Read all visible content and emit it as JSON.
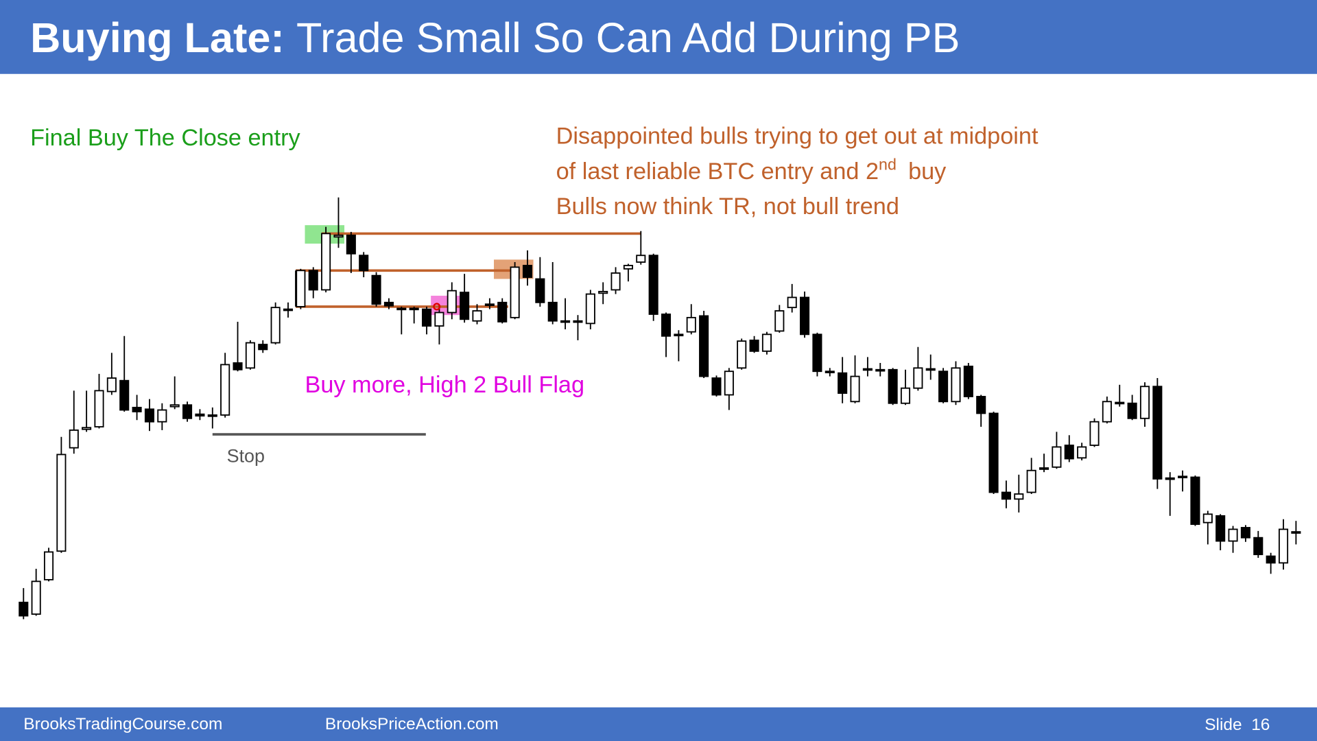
{
  "chart_data": {
    "type": "candlestick",
    "title": "Buying Late:",
    "subtitle": "Trade Small So Can Add During PB",
    "annotations": [
      "Final Buy The Close entry",
      "Disappointed bulls trying to get out at midpoint",
      "of last reliable BTC entry and 2",
      "nd",
      "buy",
      "Bulls now think TR, not bull trend",
      "Buy more, High 2 Bull Flag",
      "Stop"
    ],
    "bull_color": "#ffffff",
    "bear_color": "#000000",
    "ylim": [
      0,
      560
    ],
    "open": [
      43,
      29,
      70,
      104,
      227,
      249,
      252,
      294,
      307,
      275,
      273,
      258,
      276,
      278,
      267,
      266,
      266,
      328,
      322,
      350,
      352,
      392,
      395,
      438,
      415,
      478,
      480,
      456,
      432,
      400,
      393,
      393,
      392,
      372,
      388,
      412,
      378,
      398,
      400,
      382,
      444,
      428,
      400,
      377,
      377,
      375,
      411,
      415,
      440,
      448,
      456,
      386,
      362,
      365,
      384,
      310,
      290,
      322,
      355,
      342,
      366,
      394,
      406,
      362,
      318,
      316,
      282,
      321,
      320,
      320,
      280,
      298,
      321,
      318,
      282,
      324,
      288,
      268,
      174,
      166,
      174,
      203,
      204,
      230,
      215,
      230,
      258,
      281,
      280,
      262,
      300,
      191,
      193,
      192,
      138,
      146,
      116,
      132,
      120,
      98,
      90,
      127
    ],
    "high": [
      60,
      83,
      108,
      240,
      295,
      295,
      315,
      340,
      360,
      290,
      285,
      280,
      312,
      282,
      273,
      275,
      340,
      377,
      355,
      355,
      400,
      400,
      440,
      442,
      490,
      525,
      484,
      460,
      436,
      405,
      395,
      395,
      395,
      397,
      424,
      434,
      398,
      405,
      405,
      448,
      462,
      454,
      448,
      405,
      385,
      415,
      424,
      442,
      446,
      485,
      458,
      388,
      367,
      398,
      390,
      313,
      322,
      357,
      360,
      365,
      397,
      422,
      413,
      364,
      322,
      335,
      337,
      335,
      328,
      322,
      320,
      347,
      338,
      322,
      330,
      328,
      290,
      270,
      188,
      195,
      215,
      220,
      246,
      242,
      233,
      262,
      288,
      302,
      290,
      305,
      310,
      198,
      200,
      194,
      152,
      148,
      134,
      135,
      128,
      102,
      142,
      140
    ],
    "low": [
      23,
      27,
      68,
      102,
      220,
      246,
      250,
      290,
      270,
      260,
      247,
      248,
      273,
      258,
      260,
      250,
      263,
      318,
      320,
      340,
      350,
      382,
      392,
      405,
      412,
      465,
      435,
      430,
      395,
      392,
      362,
      375,
      362,
      350,
      380,
      376,
      374,
      392,
      375,
      380,
      420,
      395,
      374,
      368,
      355,
      368,
      398,
      410,
      425,
      445,
      378,
      335,
      330,
      362,
      310,
      288,
      272,
      320,
      340,
      338,
      364,
      388,
      358,
      312,
      312,
      280,
      280,
      312,
      312,
      278,
      278,
      295,
      308,
      280,
      278,
      285,
      252,
      172,
      155,
      150,
      172,
      198,
      202,
      210,
      212,
      228,
      256,
      276,
      260,
      252,
      178,
      146,
      175,
      134,
      112,
      105,
      102,
      115,
      96,
      77,
      82,
      112
    ],
    "close": [
      27,
      68,
      103,
      219,
      248,
      251,
      295,
      310,
      272,
      270,
      258,
      272,
      278,
      262,
      265,
      265,
      326,
      320,
      352,
      344,
      394,
      391,
      438,
      415,
      482,
      480,
      458,
      438,
      398,
      396,
      392,
      392,
      372,
      388,
      414,
      380,
      390,
      397,
      377,
      442,
      430,
      400,
      378,
      378,
      378,
      410,
      413,
      435,
      444,
      456,
      386,
      360,
      361,
      382,
      312,
      290,
      318,
      354,
      342,
      362,
      390,
      406,
      362,
      318,
      317,
      292,
      312,
      320,
      319,
      280,
      298,
      322,
      320,
      282,
      322,
      288,
      268,
      174,
      166,
      172,
      200,
      202,
      228,
      214,
      228,
      258,
      282,
      280,
      262,
      300,
      190,
      190,
      192,
      136,
      148,
      116,
      130,
      120,
      100,
      90,
      130,
      126
    ]
  },
  "footer": {
    "left": "BrooksTradingCourse.com",
    "center": "BrooksPriceAction.com",
    "slide": "Slide  16"
  }
}
